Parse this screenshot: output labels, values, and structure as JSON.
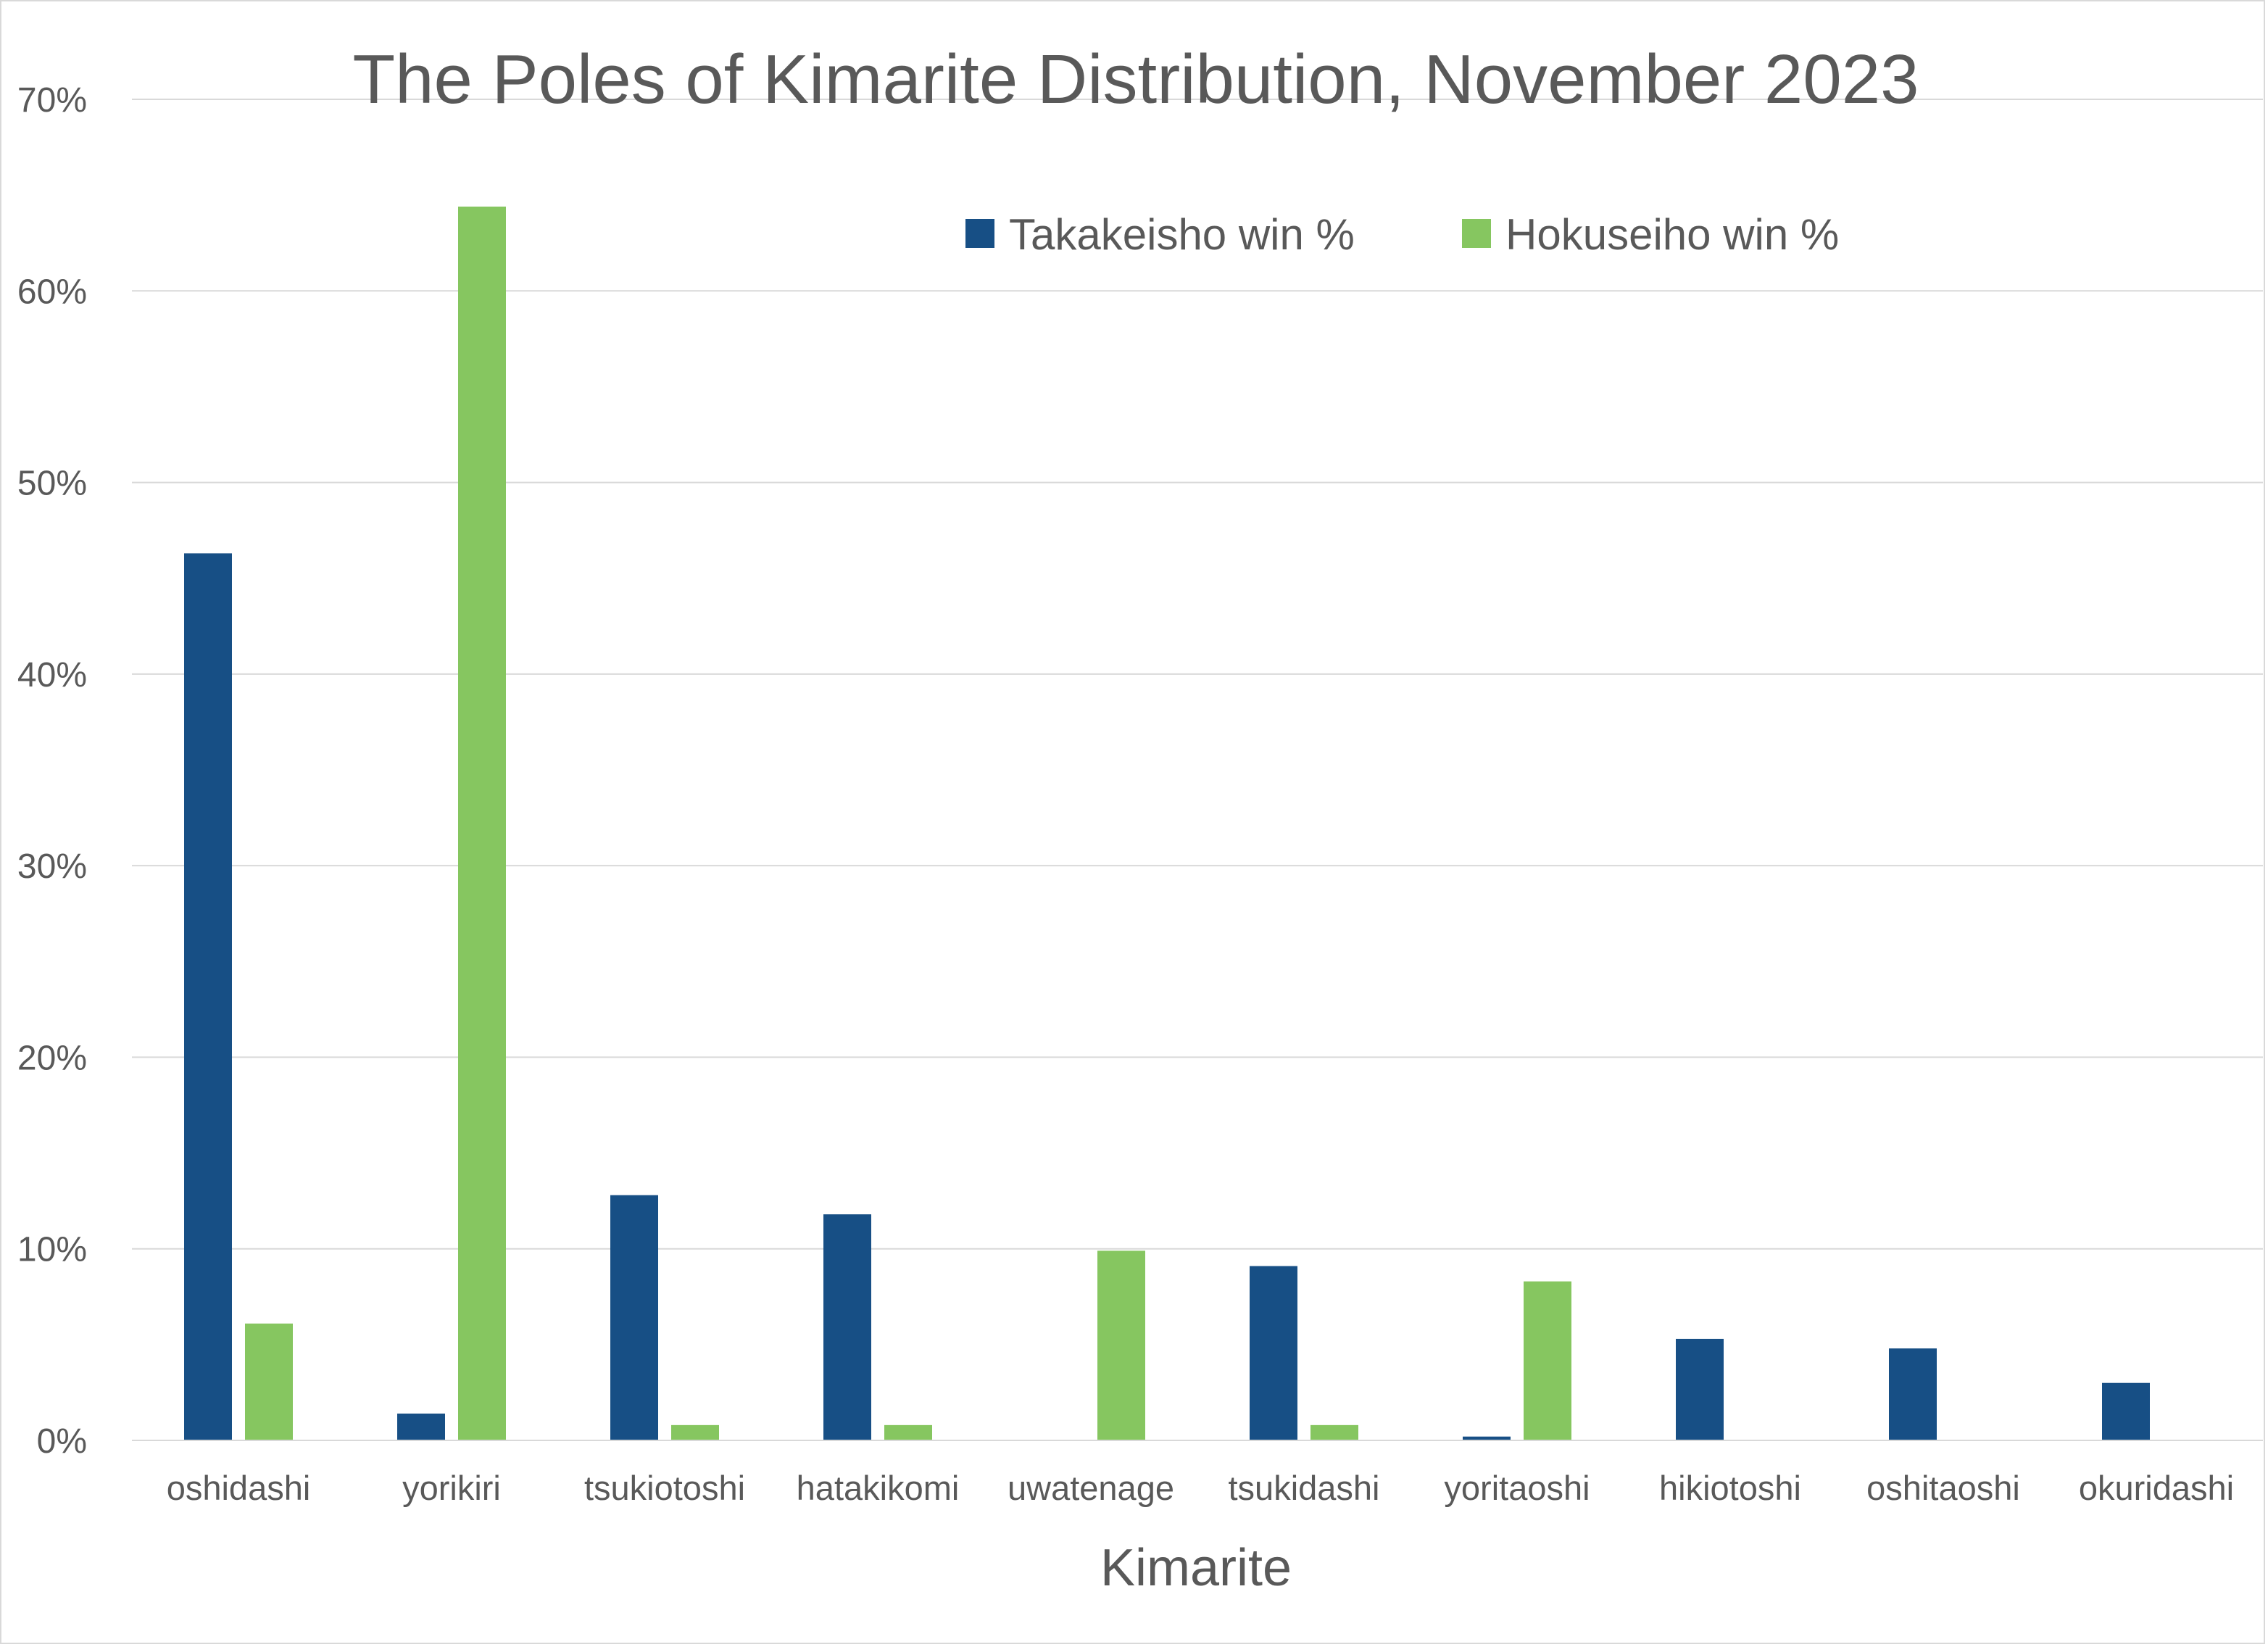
{
  "chart_data": {
    "type": "bar",
    "title": "The Poles of Kimarite Distribution, November 2023",
    "xlabel": "Kimarite",
    "ylabel": "",
    "ylim": [
      0,
      70
    ],
    "y_ticks": [
      "0%",
      "10%",
      "20%",
      "30%",
      "40%",
      "50%",
      "60%",
      "70%"
    ],
    "y_tick_values": [
      0,
      10,
      20,
      30,
      40,
      50,
      60,
      70
    ],
    "grid": true,
    "legend_position": "top-right",
    "categories": [
      "oshidashi",
      "yorikiri",
      "tsukiotoshi",
      "hatakikomi",
      "uwatenage",
      "tsukidashi",
      "yoritaoshi",
      "hikiotoshi",
      "oshitaoshi",
      "okuridashi"
    ],
    "series": [
      {
        "name": "Takakeisho win %",
        "color": "#174f85",
        "values": [
          46.3,
          1.4,
          12.8,
          11.8,
          0,
          9.1,
          0.2,
          5.3,
          4.8,
          3.0
        ]
      },
      {
        "name": "Hokuseiho win %",
        "color": "#86c660",
        "values": [
          6.1,
          64.4,
          0.8,
          0.8,
          9.9,
          0.8,
          8.3,
          0,
          0,
          0
        ]
      }
    ]
  },
  "colors": {
    "gridline": "#d9d9d9",
    "text": "#595959",
    "frame": "#d9d9d9"
  }
}
